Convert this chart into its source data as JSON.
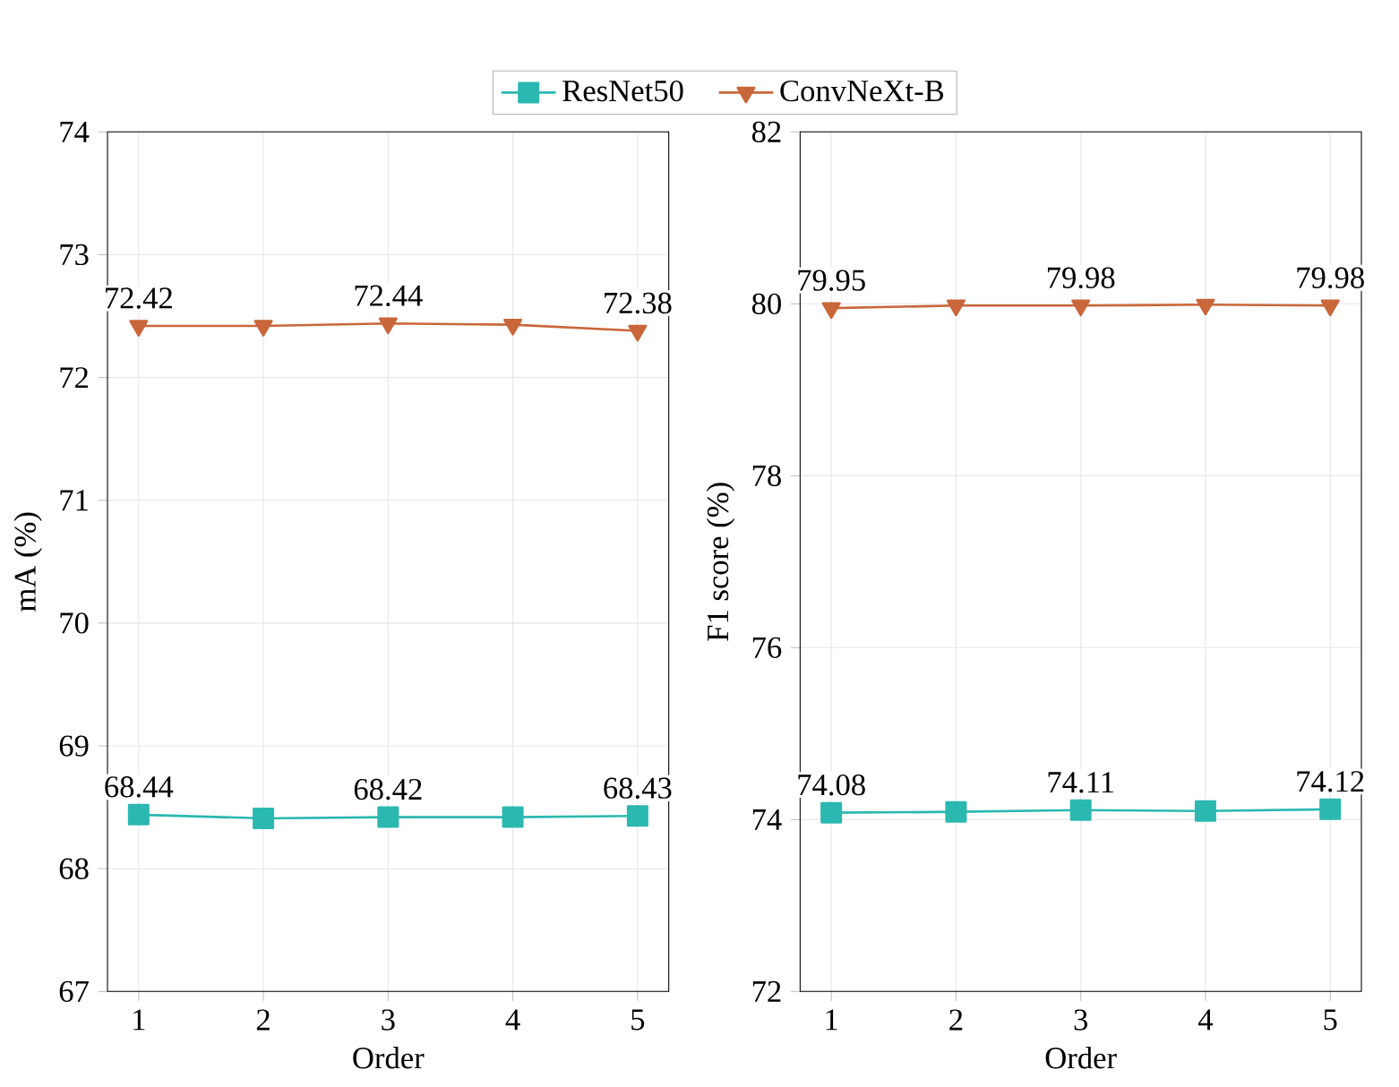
{
  "chart_data": [
    {
      "type": "line",
      "xlabel": "Order",
      "ylabel": "mA (%)",
      "x": [
        1,
        2,
        3,
        4,
        5
      ],
      "xlim": [
        0.75,
        5.25
      ],
      "xticks": [
        1,
        2,
        3,
        4,
        5
      ],
      "ylim": [
        67,
        74
      ],
      "yticks": [
        67,
        68,
        69,
        70,
        71,
        72,
        73,
        74
      ],
      "grid": true,
      "legend": "top",
      "series": [
        {
          "name": "ResNet50",
          "color": "#2bb8b0",
          "marker": "square",
          "values": [
            68.44,
            68.41,
            68.42,
            68.42,
            68.43
          ],
          "value_labels": [
            "68.44",
            null,
            "68.42",
            null,
            "68.43"
          ]
        },
        {
          "name": "ConvNeXt-B",
          "color": "#c9673a",
          "marker": "triangle",
          "values": [
            72.42,
            72.42,
            72.44,
            72.43,
            72.38
          ],
          "value_labels": [
            "72.42",
            null,
            "72.44",
            null,
            "72.38"
          ]
        }
      ]
    },
    {
      "type": "line",
      "xlabel": "Order",
      "ylabel": "F1 score (%)",
      "x": [
        1,
        2,
        3,
        4,
        5
      ],
      "xlim": [
        0.75,
        5.25
      ],
      "xticks": [
        1,
        2,
        3,
        4,
        5
      ],
      "ylim": [
        72,
        82
      ],
      "yticks": [
        72,
        74,
        76,
        78,
        80,
        82
      ],
      "grid": true,
      "series": [
        {
          "color": "#2bb8b0",
          "marker": "square",
          "values": [
            74.08,
            74.09,
            74.11,
            74.1,
            74.12
          ],
          "value_labels": [
            "74.08",
            null,
            "74.11",
            null,
            "74.12"
          ]
        },
        {
          "color": "#c9673a",
          "marker": "triangle",
          "values": [
            79.95,
            79.98,
            79.98,
            79.99,
            79.98
          ],
          "value_labels": [
            "79.95",
            null,
            "79.98",
            null,
            "79.98"
          ]
        }
      ]
    }
  ]
}
